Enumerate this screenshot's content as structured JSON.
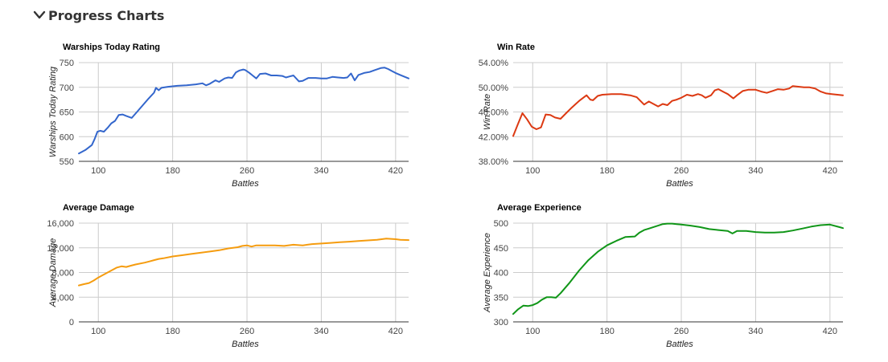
{
  "section": {
    "title": "Progress Charts",
    "toggle_icon": "chevron-down-icon"
  },
  "chart_data": [
    {
      "id": "wtr",
      "type": "line",
      "title": "Warships Today Rating",
      "xlabel": "Battles",
      "ylabel": "Warships Today Rating",
      "color": "#3366cc",
      "xlim": [
        79,
        434
      ],
      "ylim": [
        550,
        750
      ],
      "yticks": [
        550,
        600,
        650,
        700,
        750
      ],
      "ytick_labels": [
        "550",
        "600",
        "650",
        "700",
        "750"
      ],
      "xticks": [
        100,
        180,
        260,
        340,
        420
      ],
      "xtick_labels": [
        "100",
        "180",
        "260",
        "340",
        "420"
      ],
      "series": [
        {
          "x": [
            79,
            86,
            93,
            96,
            99,
            102,
            106,
            110,
            114,
            118,
            122,
            126,
            130,
            136,
            142,
            148,
            154,
            160,
            162,
            165,
            168,
            175,
            185,
            195,
            205,
            212,
            216,
            220,
            226,
            230,
            236,
            240,
            244,
            248,
            252,
            256,
            258,
            262,
            266,
            270,
            274,
            280,
            286,
            292,
            298,
            302,
            306,
            310,
            316,
            320,
            326,
            334,
            340,
            346,
            352,
            358,
            364,
            368,
            372,
            376,
            380,
            386,
            392,
            398,
            404,
            408,
            412,
            416,
            420,
            425,
            430,
            434
          ],
          "y": [
            566,
            573,
            583,
            595,
            610,
            612,
            610,
            618,
            627,
            632,
            644,
            645,
            642,
            638,
            651,
            664,
            677,
            689,
            699,
            694,
            699,
            701,
            703,
            704,
            706,
            708,
            704,
            707,
            714,
            711,
            718,
            720,
            719,
            730,
            734,
            736,
            735,
            730,
            724,
            718,
            727,
            728,
            724,
            724,
            723,
            720,
            722,
            724,
            712,
            713,
            719,
            719,
            718,
            718,
            721,
            720,
            719,
            720,
            728,
            714,
            725,
            729,
            731,
            735,
            739,
            740,
            737,
            733,
            729,
            725,
            721,
            718
          ]
        }
      ]
    },
    {
      "id": "winrate",
      "type": "line",
      "title": "Win Rate",
      "xlabel": "Battles",
      "ylabel": "Win Rate",
      "color": "#dc3912",
      "xlim": [
        79,
        434
      ],
      "ylim": [
        38,
        54
      ],
      "yticks": [
        38,
        42,
        46,
        50,
        54
      ],
      "ytick_labels": [
        "38.00%",
        "42.00%",
        "46.00%",
        "50.00%",
        "54.00%"
      ],
      "xticks": [
        100,
        180,
        260,
        340,
        420
      ],
      "xtick_labels": [
        "100",
        "180",
        "260",
        "340",
        "420"
      ],
      "series": [
        {
          "x": [
            79,
            84,
            89,
            94,
            99,
            104,
            109,
            114,
            119,
            124,
            130,
            136,
            142,
            150,
            158,
            162,
            165,
            170,
            175,
            185,
            195,
            205,
            212,
            216,
            220,
            225,
            230,
            235,
            240,
            245,
            250,
            255,
            260,
            266,
            272,
            278,
            282,
            286,
            292,
            296,
            300,
            306,
            310,
            316,
            320,
            326,
            332,
            340,
            346,
            352,
            358,
            364,
            370,
            376,
            380,
            386,
            392,
            398,
            404,
            410,
            416,
            422,
            428,
            434
          ],
          "y": [
            42.1,
            44,
            45.8,
            44.8,
            43.6,
            43.2,
            43.5,
            45.6,
            45.5,
            45.1,
            44.9,
            45.8,
            46.7,
            47.8,
            48.7,
            48,
            47.9,
            48.6,
            48.8,
            48.9,
            48.9,
            48.7,
            48.4,
            47.8,
            47.2,
            47.7,
            47.3,
            46.9,
            47.3,
            47.1,
            47.8,
            48,
            48.3,
            48.8,
            48.6,
            48.9,
            48.7,
            48.3,
            48.7,
            49.5,
            49.7,
            49.2,
            48.9,
            48.2,
            48.7,
            49.4,
            49.6,
            49.6,
            49.3,
            49.1,
            49.4,
            49.7,
            49.6,
            49.8,
            50.2,
            50.1,
            50,
            50,
            49.8,
            49.3,
            49.0,
            48.9,
            48.8,
            48.7
          ]
        }
      ]
    },
    {
      "id": "avgdmg",
      "type": "line",
      "title": "Average Damage",
      "xlabel": "Battles",
      "ylabel": "Average Damage",
      "color": "#f59c0f",
      "xlim": [
        79,
        434
      ],
      "ylim": [
        0,
        16000
      ],
      "yticks": [
        0,
        4000,
        8000,
        12000,
        16000
      ],
      "ytick_labels": [
        "0",
        "4,000",
        "8,000",
        "12,000",
        "16,000"
      ],
      "xticks": [
        100,
        180,
        260,
        340,
        420
      ],
      "xtick_labels": [
        "100",
        "180",
        "260",
        "340",
        "420"
      ],
      "series": [
        {
          "x": [
            79,
            84,
            90,
            95,
            100,
            105,
            110,
            115,
            120,
            125,
            130,
            135,
            140,
            150,
            155,
            160,
            165,
            170,
            180,
            190,
            200,
            210,
            220,
            230,
            240,
            250,
            255,
            260,
            265,
            270,
            280,
            290,
            300,
            310,
            320,
            330,
            340,
            350,
            360,
            370,
            380,
            390,
            400,
            410,
            420,
            425,
            434
          ],
          "y": [
            5900,
            6100,
            6300,
            6700,
            7200,
            7600,
            8000,
            8400,
            8800,
            9000,
            8900,
            9100,
            9300,
            9600,
            9800,
            10000,
            10200,
            10300,
            10600,
            10800,
            11000,
            11200,
            11400,
            11600,
            11900,
            12100,
            12300,
            12400,
            12200,
            12400,
            12400,
            12400,
            12300,
            12500,
            12400,
            12600,
            12700,
            12800,
            12900,
            13000,
            13100,
            13200,
            13300,
            13500,
            13400,
            13300,
            13250
          ]
        }
      ]
    },
    {
      "id": "avgexp",
      "type": "line",
      "title": "Average Experience",
      "xlabel": "Battles",
      "ylabel": "Average Experience",
      "color": "#109618",
      "xlim": [
        79,
        434
      ],
      "ylim": [
        300,
        500
      ],
      "yticks": [
        300,
        350,
        400,
        450,
        500
      ],
      "ytick_labels": [
        "300",
        "350",
        "400",
        "450",
        "500"
      ],
      "xticks": [
        100,
        180,
        260,
        340,
        420
      ],
      "xtick_labels": [
        "100",
        "180",
        "260",
        "340",
        "420"
      ],
      "series": [
        {
          "x": [
            79,
            84,
            90,
            95,
            100,
            105,
            110,
            115,
            120,
            125,
            130,
            140,
            150,
            160,
            170,
            180,
            190,
            200,
            210,
            215,
            220,
            225,
            230,
            235,
            240,
            245,
            250,
            255,
            260,
            270,
            280,
            290,
            300,
            310,
            315,
            320,
            330,
            340,
            350,
            360,
            370,
            380,
            390,
            400,
            410,
            420,
            430,
            434
          ],
          "y": [
            316,
            325,
            333,
            332,
            334,
            338,
            345,
            350,
            350,
            349,
            358,
            380,
            404,
            425,
            442,
            455,
            464,
            472,
            473,
            481,
            486,
            489,
            492,
            495,
            498,
            499,
            499,
            498,
            497,
            495,
            492,
            488,
            486,
            484,
            479,
            484,
            484,
            482,
            481,
            481,
            482,
            485,
            489,
            493,
            496,
            497,
            492,
            490
          ]
        }
      ]
    }
  ]
}
